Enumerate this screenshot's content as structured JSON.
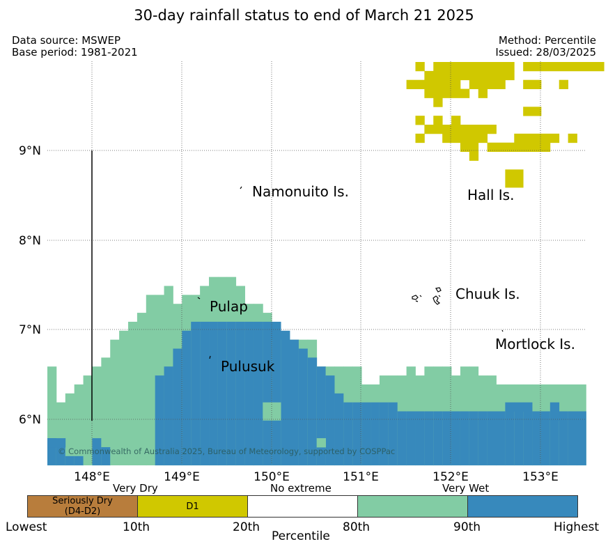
{
  "title": "30-day rainfall status to end of March 21 2025",
  "meta": {
    "data_source": "Data source: MSWEP",
    "base_period": "Base period: 1981-2021",
    "method": "Method: Percentile",
    "issued": "Issued: 28/03/2025"
  },
  "map": {
    "x_ticks": [
      "148°E",
      "149°E",
      "150°E",
      "151°E",
      "152°E",
      "153°E"
    ],
    "y_ticks": [
      "9°N",
      "8°N",
      "7°N",
      "6°N"
    ],
    "places": [
      "Namonuito Is.",
      "Hall Is.",
      "Pulap",
      "Chuuk Is.",
      "Pulusuk",
      "Mortlock Is."
    ],
    "copyright": "© Commonwealth of Australia 2025, Bureau of Meteorology, supported by COSPPac"
  },
  "legend": {
    "categories": [
      "Very Dry",
      "No extreme",
      "Very Wet"
    ],
    "boxes": [
      {
        "label": "Seriously Dry\n(D4-D2)",
        "color": "#b87d3c"
      },
      {
        "label": "D1",
        "color": "#d0c800"
      },
      {
        "label": "",
        "color": "#ffffff"
      },
      {
        "label": "",
        "color": "#82cca4"
      },
      {
        "label": "",
        "color": "#3789bc"
      }
    ],
    "ticks": [
      "Lowest",
      "10th",
      "20th",
      "80th",
      "90th",
      "Highest"
    ],
    "axis_label": "Percentile"
  },
  "colors": {
    "d1": "#d0c800",
    "very_wet": "#82cca4",
    "highest": "#3789bc"
  }
}
